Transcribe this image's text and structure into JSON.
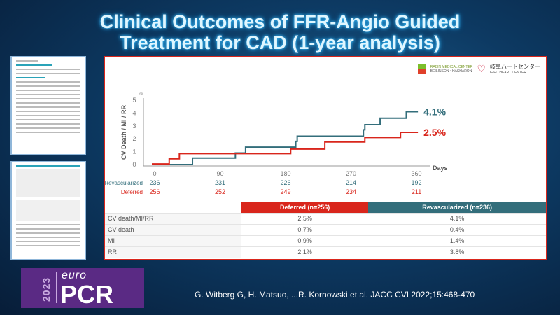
{
  "title": {
    "line1": "Clinical Outcomes of FFR-Angio Guided",
    "line2": "Treatment for CAD (1-year analysis)"
  },
  "logos": {
    "rabin": "RABIN MEDICAL CENTER",
    "rabin_sub": "BEILINSON • HASHARON",
    "gifu": "岐阜ハートセンター",
    "gifu_sub": "GIFU HEART CENTER"
  },
  "chart_data": {
    "type": "line",
    "step": true,
    "ylabel": "CV Death / MI / RR",
    "yunit": "%",
    "xlabel": "Days",
    "xlim": [
      0,
      360
    ],
    "ylim": [
      0,
      5
    ],
    "xticks": [
      0,
      90,
      180,
      270,
      360
    ],
    "yticks": [
      0,
      1,
      2,
      3,
      4,
      5
    ],
    "series": [
      {
        "name": "Revascularized",
        "color": "#336e7b",
        "end_label": "4.1%",
        "points": [
          [
            0,
            0
          ],
          [
            52,
            0.5
          ],
          [
            111,
            0.9
          ],
          [
            125,
            1.35
          ],
          [
            194,
            1.8
          ],
          [
            196,
            2.2
          ],
          [
            287,
            2.7
          ],
          [
            289,
            3.1
          ],
          [
            310,
            3.6
          ],
          [
            346,
            4.1
          ],
          [
            362,
            4.1
          ]
        ]
      },
      {
        "name": "Deferred",
        "color": "#d9261c",
        "end_label": "2.5%",
        "points": [
          [
            0,
            0.05
          ],
          [
            20,
            0.45
          ],
          [
            34,
            0.85
          ],
          [
            187,
            1.2
          ],
          [
            234,
            1.75
          ],
          [
            289,
            2.1
          ],
          [
            338,
            2.5
          ],
          [
            362,
            2.5
          ]
        ]
      }
    ],
    "at_risk": {
      "Revascularized": [
        236,
        231,
        226,
        214,
        192
      ],
      "Deferred": [
        256,
        252,
        249,
        234,
        211
      ]
    }
  },
  "table": {
    "headers": [
      "",
      "Deferred (n=256)",
      "Revascularized (n=236)"
    ],
    "rows": [
      [
        "CV death/MI/RR",
        "2.5%",
        "4.1%"
      ],
      [
        "CV death",
        "0.7%",
        "0.4%"
      ],
      [
        "MI",
        "0.9%",
        "1.4%"
      ],
      [
        "RR",
        "2.1%",
        "3.8%"
      ]
    ]
  },
  "congress": {
    "year": "2023",
    "euro": "euro",
    "pcr": "PCR"
  },
  "citation": "G. Witberg G, H. Matsuo, ...R. Kornowski et al. JACC CVI 2022;15:468-470"
}
